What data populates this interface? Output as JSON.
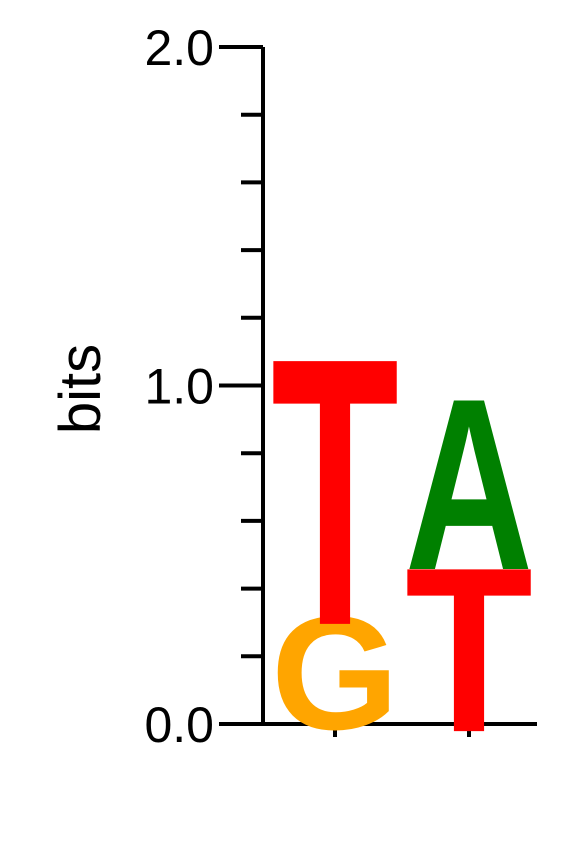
{
  "chart_data": {
    "type": "sequence-logo",
    "ylabel": "bits",
    "ylim": [
      0,
      2
    ],
    "y_ticks": [
      "0.0",
      "1.0",
      "2.0"
    ],
    "y_minor_tick_step": 0.2,
    "positions": [
      {
        "index": 1,
        "letters": [
          {
            "letter": "G",
            "bits": 0.33,
            "color": "#FFA500"
          },
          {
            "letter": "T",
            "bits": 0.78,
            "color": "#FF0000"
          }
        ]
      },
      {
        "index": 2,
        "letters": [
          {
            "letter": "T",
            "bits": 0.48,
            "color": "#FF0000"
          },
          {
            "letter": "A",
            "bits": 0.5,
            "color": "#008000"
          }
        ]
      }
    ]
  }
}
